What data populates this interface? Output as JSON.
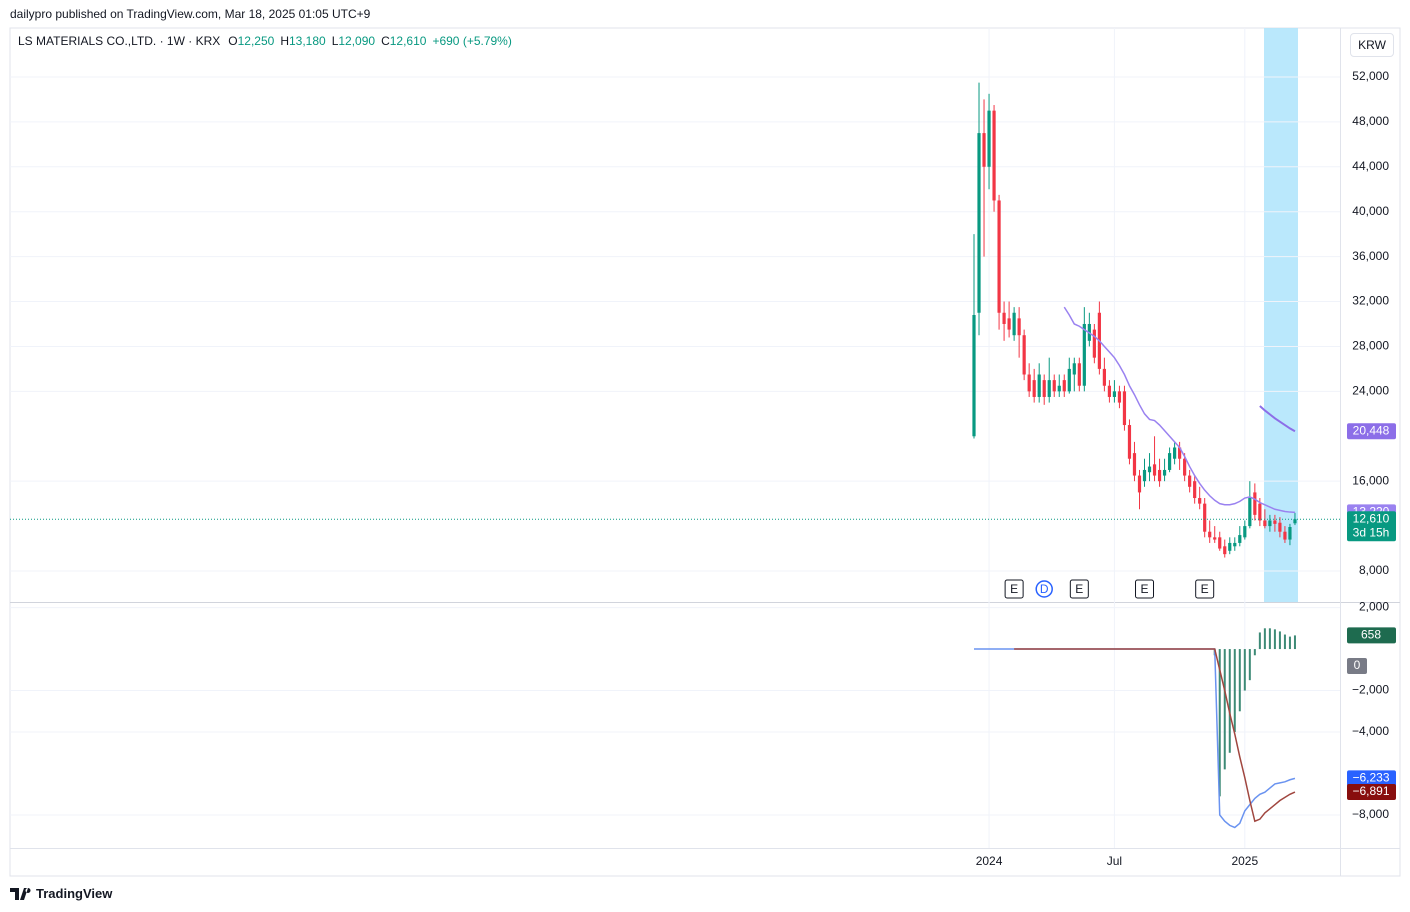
{
  "header": {
    "publisher": "dailypro published on TradingView.com, Mar 18, 2025 01:05 UTC+9",
    "currency": "KRW",
    "brand": "TradingView"
  },
  "legend": {
    "symbol": "LS MATERIALS CO.,LTD. · 1W · KRX",
    "fields": [
      {
        "key": "O",
        "value": "12,250"
      },
      {
        "key": "H",
        "value": "13,180"
      },
      {
        "key": "L",
        "value": "12,090"
      },
      {
        "key": "C",
        "value": "12,610"
      }
    ],
    "change": "+690 (+5.79%)"
  },
  "chart_data": [
    {
      "type": "candlestick",
      "categories": [
        null,
        null,
        null,
        "2024",
        null,
        null,
        null,
        null,
        null,
        null,
        null,
        null,
        null,
        null,
        null,
        null,
        null,
        null,
        null,
        null,
        null,
        null,
        null,
        null,
        null,
        null,
        null,
        null,
        "Jul",
        null,
        null,
        null,
        null,
        null,
        null,
        null,
        null,
        null,
        null,
        null,
        null,
        null,
        null,
        null,
        null,
        null,
        null,
        null,
        null,
        null,
        null,
        null,
        null,
        null,
        "2025",
        null,
        null,
        null,
        null,
        null,
        null,
        null,
        null,
        null,
        null
      ],
      "open": [
        20000,
        31000,
        47000,
        44000,
        49000,
        41000,
        31000,
        30500,
        29000,
        30500,
        29000,
        25500,
        25000,
        23500,
        25000,
        23500,
        25000,
        24000,
        25000,
        24000,
        25500,
        26500,
        24500,
        28500,
        29500,
        31000,
        26000,
        24500,
        23500,
        24000,
        24000,
        21000,
        18500,
        16500,
        16000,
        16800,
        17500,
        17000,
        16500,
        17000,
        18000,
        19000,
        18000,
        16500,
        16000,
        14500,
        14000,
        11500,
        11000,
        11000,
        10200,
        9800,
        10200,
        10500,
        11000,
        12000,
        15000,
        14000,
        12500,
        12000,
        12500,
        12300,
        11500,
        10800,
        12250
      ],
      "high": [
        38000,
        51500,
        50000,
        50500,
        49500,
        41500,
        32000,
        32000,
        31500,
        31500,
        29500,
        26500,
        26000,
        26500,
        25500,
        27000,
        25500,
        25500,
        25500,
        27000,
        27000,
        27000,
        31500,
        31000,
        30000,
        32000,
        27000,
        25000,
        25000,
        24500,
        24500,
        21500,
        19500,
        17000,
        18000,
        18500,
        20000,
        18000,
        18000,
        19000,
        19500,
        19500,
        18500,
        17000,
        16500,
        15500,
        14500,
        12500,
        12000,
        11500,
        10800,
        11000,
        11000,
        12000,
        12500,
        16000,
        15800,
        14500,
        13500,
        13000,
        13000,
        12800,
        12000,
        12200,
        13180
      ],
      "low": [
        19800,
        29000,
        36000,
        42000,
        40000,
        29500,
        28500,
        28800,
        28500,
        27000,
        25000,
        23500,
        23000,
        23000,
        22800,
        23000,
        23500,
        23500,
        23500,
        23800,
        24000,
        24000,
        24000,
        28000,
        26500,
        25500,
        24000,
        23000,
        23000,
        22500,
        20500,
        17500,
        16000,
        13500,
        15500,
        16000,
        16000,
        15500,
        16000,
        16800,
        17500,
        17000,
        16000,
        15000,
        14000,
        13500,
        11000,
        10500,
        10500,
        9800,
        9200,
        9500,
        9800,
        10200,
        10800,
        11800,
        12500,
        12000,
        11800,
        11500,
        11500,
        11000,
        10500,
        10300,
        12090
      ],
      "close": [
        30800,
        47000,
        44000,
        49000,
        41000,
        31000,
        30000,
        29500,
        31000,
        29000,
        25500,
        24000,
        23500,
        25500,
        23500,
        25000,
        24000,
        24500,
        24000,
        26000,
        26500,
        24500,
        30000,
        30000,
        27000,
        26000,
        24500,
        23500,
        24000,
        23000,
        21000,
        18000,
        16500,
        15000,
        17000,
        17300,
        16500,
        16000,
        17000,
        18500,
        19000,
        18000,
        16500,
        15500,
        14500,
        14000,
        11500,
        11000,
        10800,
        10000,
        9500,
        10500,
        10500,
        11200,
        12000,
        14500,
        13000,
        12500,
        12000,
        12500,
        12200,
        11500,
        10800,
        11920,
        12610
      ],
      "up_color": "#089981",
      "down_color": "#f23645",
      "last_label": "12,610",
      "countdown": "3d 15h",
      "lines": [
        {
          "color": "#9a82f0",
          "values": [
            null,
            null,
            null,
            null,
            null,
            null,
            null,
            null,
            null,
            null,
            null,
            null,
            null,
            null,
            null,
            null,
            null,
            null,
            31500,
            30800,
            30000,
            29800,
            29500,
            29200,
            28900,
            28500,
            28000,
            27500,
            27000,
            26300,
            25500,
            24500,
            23700,
            22800,
            22000,
            21500,
            21400,
            21000,
            20500,
            20000,
            19500,
            19000,
            18200,
            17300,
            16500,
            15800,
            15200,
            14700,
            14300,
            14000,
            13900,
            13900,
            14000,
            14200,
            14500,
            14600,
            14400,
            14100,
            13900,
            13700,
            13500,
            13400,
            13300,
            13250,
            13220
          ],
          "last_label": "13,220"
        },
        {
          "color": "#8c6ee8",
          "values": [
            null,
            null,
            null,
            null,
            null,
            null,
            null,
            null,
            null,
            null,
            null,
            null,
            null,
            null,
            null,
            null,
            null,
            null,
            null,
            null,
            null,
            null,
            null,
            null,
            null,
            null,
            null,
            null,
            null,
            null,
            null,
            null,
            null,
            null,
            null,
            null,
            null,
            null,
            null,
            null,
            null,
            null,
            null,
            null,
            null,
            null,
            null,
            null,
            null,
            null,
            null,
            null,
            null,
            null,
            null,
            null,
            null,
            22700,
            22300,
            21950,
            21600,
            21300,
            21000,
            20700,
            20448
          ],
          "last_label": "20,448"
        }
      ],
      "ylim": [
        5240,
        56360
      ],
      "yticks": [
        {
          "value": 8000,
          "label": "8,000"
        },
        {
          "value": 16000,
          "label": "16,000"
        },
        {
          "value": 24000,
          "label": "24,000"
        },
        {
          "value": 28000,
          "label": "28,000"
        },
        {
          "value": 32000,
          "label": "32,000"
        },
        {
          "value": 36000,
          "label": "36,000"
        },
        {
          "value": 40000,
          "label": "40,000"
        },
        {
          "value": 44000,
          "label": "44,000"
        },
        {
          "value": 48000,
          "label": "48,000"
        },
        {
          "value": 52000,
          "label": "52,000"
        }
      ],
      "events": [
        "E",
        "D",
        "E",
        "E",
        "E"
      ],
      "grid": true
    },
    {
      "type": "macd",
      "histogram": {
        "color": "#3d8a76",
        "values": [
          null,
          null,
          null,
          null,
          null,
          null,
          null,
          null,
          null,
          null,
          null,
          null,
          null,
          null,
          null,
          null,
          null,
          null,
          null,
          null,
          null,
          null,
          null,
          null,
          null,
          null,
          null,
          null,
          null,
          null,
          null,
          null,
          null,
          null,
          null,
          null,
          null,
          null,
          null,
          null,
          null,
          null,
          null,
          null,
          null,
          null,
          null,
          null,
          -300,
          -7100,
          -5800,
          -5000,
          -4000,
          -3000,
          -2000,
          -1500,
          -300,
          800,
          1000,
          1000,
          950,
          850,
          700,
          600,
          658
        ],
        "last_label": "658",
        "label_color": "#1e6b4f"
      },
      "lines": [
        {
          "color": "#6a93f0",
          "values": [
            0,
            0,
            0,
            0,
            0,
            0,
            0,
            0,
            0,
            0,
            0,
            0,
            0,
            0,
            0,
            0,
            0,
            0,
            0,
            0,
            0,
            0,
            0,
            0,
            0,
            0,
            0,
            0,
            0,
            0,
            0,
            0,
            0,
            0,
            0,
            0,
            0,
            0,
            0,
            0,
            0,
            0,
            0,
            0,
            0,
            0,
            0,
            0,
            0,
            -8000,
            -8300,
            -8500,
            -8600,
            -8400,
            -7800,
            -7500,
            -7200,
            -7000,
            -6900,
            -6700,
            -6500,
            -6450,
            -6400,
            -6300,
            -6233
          ],
          "last_label": "−6,233",
          "label_color": "#2962ff"
        },
        {
          "color": "#a0463f",
          "values": [
            null,
            null,
            null,
            null,
            null,
            null,
            null,
            null,
            0,
            0,
            0,
            0,
            0,
            0,
            0,
            0,
            0,
            0,
            0,
            0,
            0,
            0,
            0,
            0,
            0,
            0,
            0,
            0,
            0,
            0,
            0,
            0,
            0,
            0,
            0,
            0,
            0,
            0,
            0,
            0,
            0,
            0,
            0,
            0,
            0,
            0,
            0,
            0,
            0,
            -1000,
            -2000,
            -3100,
            -4100,
            -5200,
            -6200,
            -7300,
            -8300,
            -8200,
            -7900,
            -7700,
            -7500,
            -7300,
            -7150,
            -7000,
            -6891
          ],
          "last_label": "−6,891",
          "label_color": "#880e0e"
        }
      ],
      "zero_label": "0",
      "ylim": [
        -9590,
        2220
      ],
      "yticks": [
        {
          "value": -8000,
          "label": "−8,000"
        },
        {
          "value": -4000,
          "label": "−4,000"
        },
        {
          "value": -2000,
          "label": "−2,000"
        },
        {
          "value": 2000,
          "label": "2,000"
        }
      ],
      "grid": true
    }
  ]
}
